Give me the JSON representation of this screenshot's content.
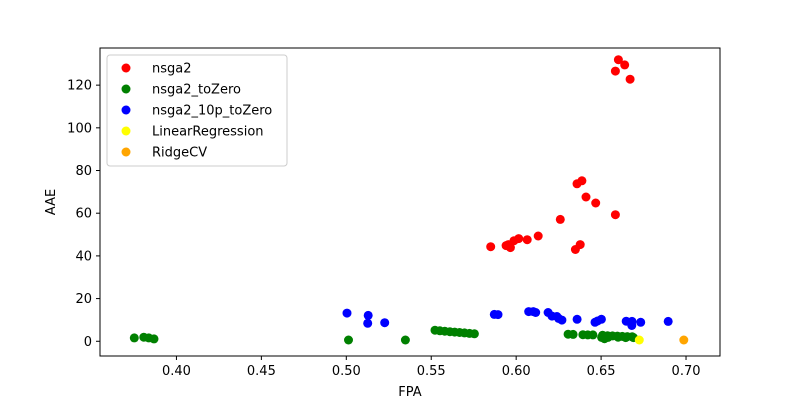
{
  "chart_data": {
    "type": "scatter",
    "xlabel": "FPA",
    "ylabel": "AAE",
    "xlim": [
      0.355,
      0.72
    ],
    "ylim": [
      -6.9,
      137.4
    ],
    "xticks": [
      0.4,
      0.45,
      0.5,
      0.55,
      0.6,
      0.65,
      0.7
    ],
    "xtick_labels": [
      "0.40",
      "0.45",
      "0.50",
      "0.55",
      "0.60",
      "0.65",
      "0.70"
    ],
    "yticks": [
      0,
      20,
      40,
      60,
      80,
      100,
      120
    ],
    "ytick_labels": [
      "0",
      "20",
      "40",
      "60",
      "80",
      "100",
      "120"
    ],
    "grid": false,
    "legend_position": "top-left",
    "series": [
      {
        "name": "nsga2",
        "color": "#ff0000",
        "points": [
          [
            0.6602,
            131.9
          ],
          [
            0.6639,
            129.5
          ],
          [
            0.6584,
            126.6
          ],
          [
            0.6671,
            122.8
          ],
          [
            0.6387,
            75.2
          ],
          [
            0.6358,
            73.8
          ],
          [
            0.6411,
            67.6
          ],
          [
            0.6468,
            64.8
          ],
          [
            0.6584,
            59.3
          ],
          [
            0.626,
            57.1
          ],
          [
            0.613,
            49.3
          ],
          [
            0.6015,
            48.1
          ],
          [
            0.6065,
            47.6
          ],
          [
            0.5987,
            47.1
          ],
          [
            0.5954,
            45.3
          ],
          [
            0.5941,
            44.8
          ],
          [
            0.5966,
            43.9
          ],
          [
            0.585,
            44.3
          ],
          [
            0.6377,
            45.3
          ],
          [
            0.6349,
            43.0
          ]
        ]
      },
      {
        "name": "nsga2_toZero",
        "color": "#008000",
        "points": [
          [
            0.3752,
            1.6
          ],
          [
            0.3808,
            1.9
          ],
          [
            0.3837,
            1.6
          ],
          [
            0.3868,
            1.1
          ],
          [
            0.5013,
            0.6
          ],
          [
            0.5348,
            0.6
          ],
          [
            0.5522,
            5.2
          ],
          [
            0.5551,
            4.9
          ],
          [
            0.558,
            4.7
          ],
          [
            0.561,
            4.5
          ],
          [
            0.5638,
            4.3
          ],
          [
            0.5667,
            4.1
          ],
          [
            0.5696,
            3.9
          ],
          [
            0.5725,
            3.7
          ],
          [
            0.5754,
            3.5
          ],
          [
            0.6306,
            3.3
          ],
          [
            0.6335,
            3.2
          ],
          [
            0.6393,
            3.1
          ],
          [
            0.6422,
            3.0
          ],
          [
            0.6452,
            3.0
          ],
          [
            0.6509,
            2.8
          ],
          [
            0.6538,
            2.6
          ],
          [
            0.6567,
            2.5
          ],
          [
            0.6596,
            2.4
          ],
          [
            0.6625,
            2.3
          ],
          [
            0.6654,
            2.2
          ],
          [
            0.6683,
            2.1
          ],
          [
            0.6503,
            1.8
          ],
          [
            0.654,
            1.8
          ],
          [
            0.66,
            1.9
          ],
          [
            0.6645,
            1.7
          ],
          [
            0.669,
            1.7
          ],
          [
            0.652,
            1.2
          ]
        ]
      },
      {
        "name": "nsga2_10p_toZero",
        "color": "#0000ff",
        "points": [
          [
            0.5004,
            13.2
          ],
          [
            0.5129,
            12.1
          ],
          [
            0.5126,
            8.4
          ],
          [
            0.5226,
            8.7
          ],
          [
            0.5871,
            12.6
          ],
          [
            0.5893,
            12.5
          ],
          [
            0.6074,
            13.9
          ],
          [
            0.6101,
            13.9
          ],
          [
            0.6115,
            13.5
          ],
          [
            0.6188,
            13.5
          ],
          [
            0.6211,
            11.8
          ],
          [
            0.624,
            11.6
          ],
          [
            0.625,
            10.7
          ],
          [
            0.6269,
            9.9
          ],
          [
            0.6359,
            10.3
          ],
          [
            0.6464,
            8.9
          ],
          [
            0.6479,
            9.5
          ],
          [
            0.6502,
            10.3
          ],
          [
            0.6648,
            9.4
          ],
          [
            0.6682,
            9.3
          ],
          [
            0.6733,
            8.9
          ],
          [
            0.6681,
            7.4
          ],
          [
            0.6895,
            9.3
          ]
        ]
      },
      {
        "name": "LinearRegression",
        "color": "#ffff00",
        "points": [
          [
            0.6725,
            0.6
          ]
        ]
      },
      {
        "name": "RidgeCV",
        "color": "#ffa500",
        "points": [
          [
            0.6987,
            0.6
          ]
        ]
      }
    ]
  }
}
